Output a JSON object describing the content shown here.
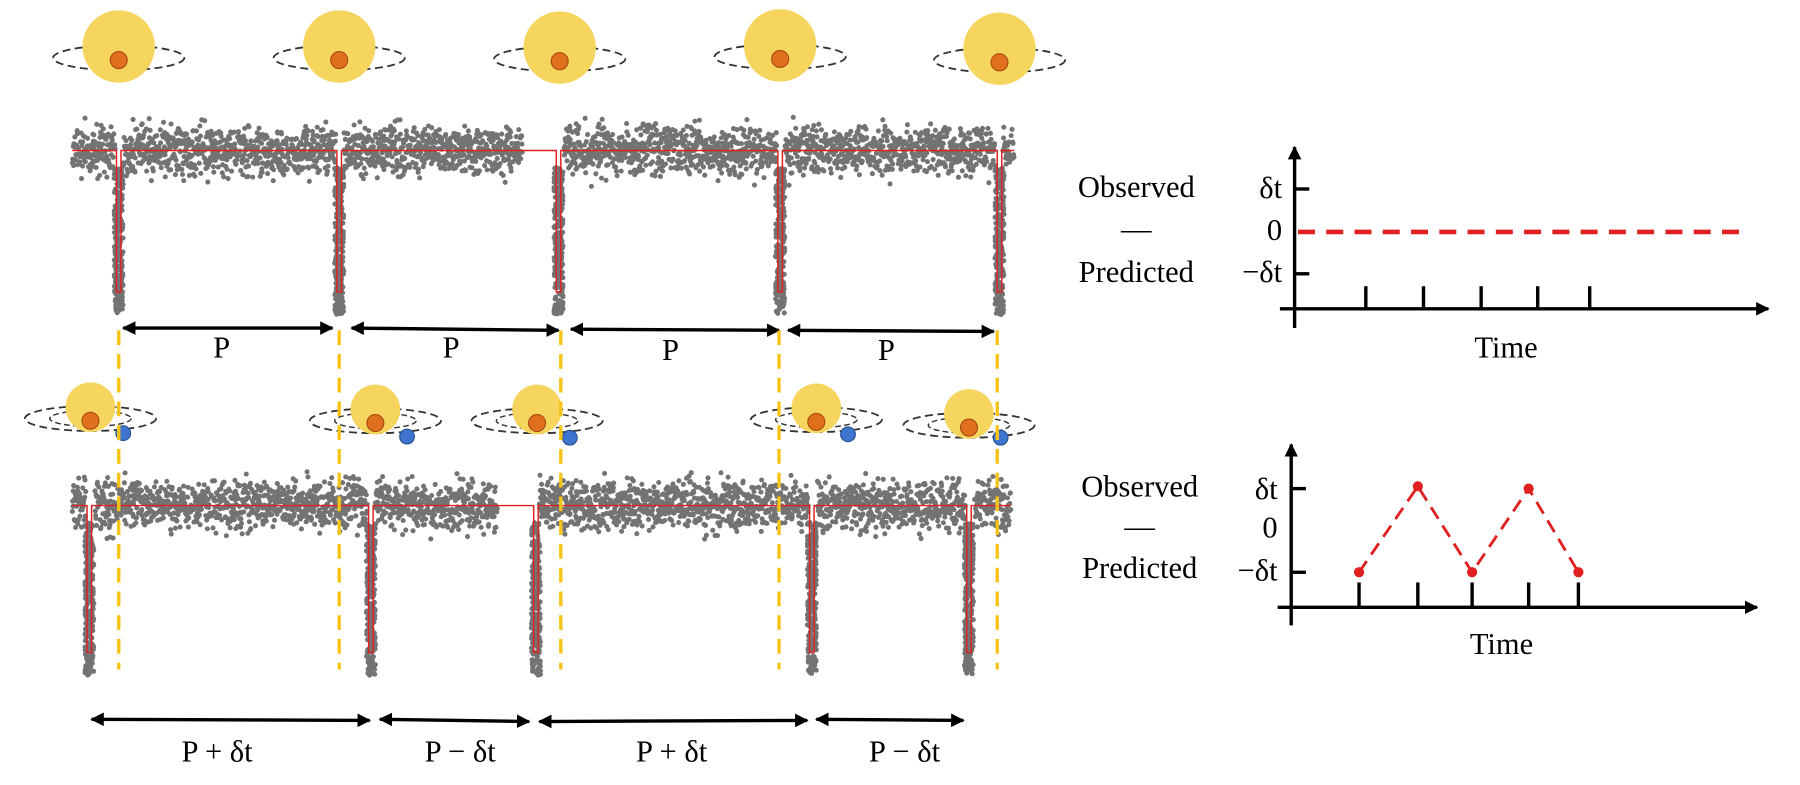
{
  "top_panel": {
    "period_labels": [
      "P",
      "P",
      "P",
      "P"
    ]
  },
  "bottom_panel": {
    "period_labels": [
      "P + δt",
      "P − δt",
      "P + δt",
      "P − δt"
    ]
  },
  "oc_plots": [
    {
      "y_label": [
        "Observed",
        "—",
        "Predicted"
      ],
      "ticks": [
        "δt",
        "0",
        "−δt"
      ],
      "x_label": "Time"
    },
    {
      "y_label": [
        "Observed",
        "—",
        "Predicted"
      ],
      "ticks": [
        "δt",
        "0",
        "−δt"
      ],
      "x_label": "Time"
    }
  ]
}
